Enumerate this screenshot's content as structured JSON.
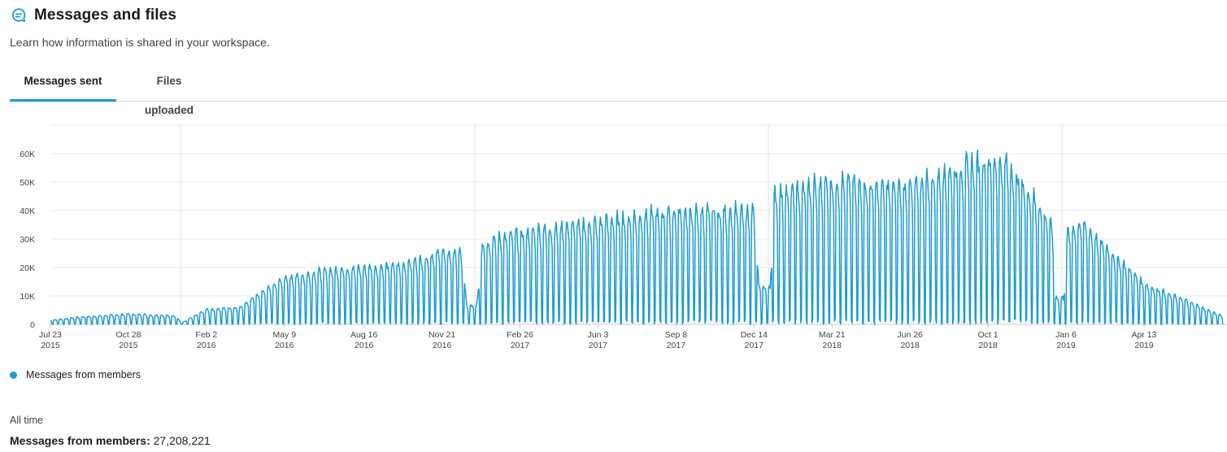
{
  "header": {
    "icon": "chat-bubble-icon",
    "title": "Messages and files",
    "subtitle": "Learn how information is shared in your workspace."
  },
  "tabs": [
    {
      "label": "Messages sent",
      "active": true
    },
    {
      "label": "Files uploaded",
      "active": false
    }
  ],
  "colors": {
    "accent": "#1d9bd1",
    "grid": "#e8e8e8"
  },
  "chart_data": {
    "type": "line",
    "title": "",
    "xlabel": "",
    "ylabel": "",
    "ylim": [
      0,
      70000
    ],
    "grid": true,
    "y_ticks": [
      {
        "value": 0,
        "label": "0"
      },
      {
        "value": 10000,
        "label": "10K"
      },
      {
        "value": 20000,
        "label": "20K"
      },
      {
        "value": 30000,
        "label": "30K"
      },
      {
        "value": 40000,
        "label": "40K"
      },
      {
        "value": 50000,
        "label": "50K"
      },
      {
        "value": 60000,
        "label": "60K"
      }
    ],
    "x_ticks": [
      {
        "date": "2015-07-23",
        "line1": "Jul 23",
        "line2": "2015"
      },
      {
        "date": "2015-10-28",
        "line1": "Oct 28",
        "line2": "2015"
      },
      {
        "date": "2016-02-02",
        "line1": "Feb 2",
        "line2": "2016"
      },
      {
        "date": "2016-05-09",
        "line1": "May 9",
        "line2": "2016"
      },
      {
        "date": "2016-08-16",
        "line1": "Aug 16",
        "line2": "2016"
      },
      {
        "date": "2016-11-21",
        "line1": "Nov 21",
        "line2": "2016"
      },
      {
        "date": "2017-02-26",
        "line1": "Feb 26",
        "line2": "2017"
      },
      {
        "date": "2017-06-03",
        "line1": "Jun 3",
        "line2": "2017"
      },
      {
        "date": "2017-09-08",
        "line1": "Sep 8",
        "line2": "2017"
      },
      {
        "date": "2017-12-14",
        "line1": "Dec 14",
        "line2": "2017"
      },
      {
        "date": "2018-03-21",
        "line1": "Mar 21",
        "line2": "2018"
      },
      {
        "date": "2018-06-26",
        "line1": "Jun 26",
        "line2": "2018"
      },
      {
        "date": "2018-10-01",
        "line1": "Oct 1",
        "line2": "2018"
      },
      {
        "date": "2019-01-06",
        "line1": "Jan 6",
        "line2": "2019"
      },
      {
        "date": "2019-04-13",
        "line1": "Apr 13",
        "line2": "2019"
      }
    ],
    "x_range": [
      "2015-07-23",
      "2019-07-20"
    ],
    "series": [
      {
        "name": "Messages from members",
        "color": "#1d9bd1",
        "pattern": "daily values with weekly cycle; weekday peaks follow the envelope, weekends near 0",
        "weekday_peak_envelope": [
          {
            "date": "2015-07-23",
            "value": 1500
          },
          {
            "date": "2015-09-01",
            "value": 2800
          },
          {
            "date": "2015-10-28",
            "value": 3800
          },
          {
            "date": "2015-12-25",
            "value": 3200
          },
          {
            "date": "2016-01-02",
            "value": 500
          },
          {
            "date": "2016-02-02",
            "value": 5500
          },
          {
            "date": "2016-03-15",
            "value": 6500
          },
          {
            "date": "2016-04-10",
            "value": 12000
          },
          {
            "date": "2016-05-09",
            "value": 17000
          },
          {
            "date": "2016-07-01",
            "value": 20000
          },
          {
            "date": "2016-08-16",
            "value": 21000
          },
          {
            "date": "2016-10-01",
            "value": 22000
          },
          {
            "date": "2016-11-21",
            "value": 27000
          },
          {
            "date": "2016-12-15",
            "value": 26000
          },
          {
            "date": "2016-12-22",
            "value": 7000
          },
          {
            "date": "2017-01-03",
            "value": 7000
          },
          {
            "date": "2017-01-10",
            "value": 30000
          },
          {
            "date": "2017-02-26",
            "value": 34000
          },
          {
            "date": "2017-06-03",
            "value": 38000
          },
          {
            "date": "2017-09-08",
            "value": 42000
          },
          {
            "date": "2017-12-14",
            "value": 42000
          },
          {
            "date": "2017-12-20",
            "value": 14000
          },
          {
            "date": "2018-01-03",
            "value": 14000
          },
          {
            "date": "2018-01-08",
            "value": 48000
          },
          {
            "date": "2018-03-21",
            "value": 53000
          },
          {
            "date": "2018-06-26",
            "value": 51000
          },
          {
            "date": "2018-08-15",
            "value": 57000
          },
          {
            "date": "2018-10-01",
            "value": 61000
          },
          {
            "date": "2018-10-25",
            "value": 60000
          },
          {
            "date": "2018-11-20",
            "value": 50000
          },
          {
            "date": "2018-12-20",
            "value": 36000
          },
          {
            "date": "2018-12-24",
            "value": 10000
          },
          {
            "date": "2019-01-03",
            "value": 10000
          },
          {
            "date": "2019-01-08",
            "value": 34000
          },
          {
            "date": "2019-01-25",
            "value": 38000
          },
          {
            "date": "2019-02-20",
            "value": 30000
          },
          {
            "date": "2019-04-13",
            "value": 15000
          },
          {
            "date": "2019-06-10",
            "value": 8000
          },
          {
            "date": "2019-07-20",
            "value": 3000
          }
        ]
      }
    ],
    "legend": {
      "position": "bottom-left",
      "label": "Messages from members"
    }
  },
  "summary": {
    "heading": "All time",
    "label": "Messages from members:",
    "value": "27,208,221"
  }
}
